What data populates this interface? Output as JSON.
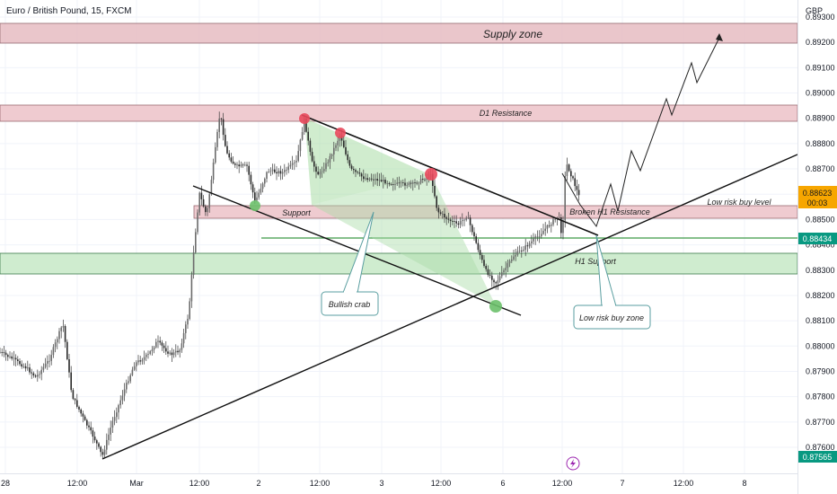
{
  "header": {
    "title": "Euro / British Pound, 15, FXCM",
    "currency": "GBP"
  },
  "chart_data": {
    "type": "candlestick",
    "instrument": "Euro / British Pound",
    "timeframe": "15",
    "broker": "FXCM",
    "y_range": [
      0.8755,
      0.8932
    ],
    "y_ticks": [
      "0.89300",
      "0.89200",
      "0.89100",
      "0.89000",
      "0.88900",
      "0.88800",
      "0.88700",
      "0.88600",
      "0.88500",
      "0.88400",
      "0.88300",
      "0.88200",
      "0.88100",
      "0.88000",
      "0.87900",
      "0.87800",
      "0.87700",
      "0.87600"
    ],
    "x_ticks": [
      "28",
      "12:00",
      "Mar",
      "12:00",
      "2",
      "12:00",
      "3",
      "12:00",
      "6",
      "12:00",
      "7",
      "12:00",
      "8"
    ],
    "price_labels": {
      "current": {
        "price": "0.88623",
        "countdown": "00:03",
        "color": "#f7a600"
      },
      "line": {
        "price": "0.88434",
        "color": "#089981"
      },
      "low": {
        "price": "0.87565",
        "color": "#089981"
      }
    },
    "zones": [
      {
        "label": "Supply zone",
        "price_top": 0.893,
        "price_bottom": 0.8922,
        "color": "#e8a6b0"
      },
      {
        "label": "D1 Resistance",
        "price_top": 0.8896,
        "price_bottom": 0.889,
        "color": "#e8a6b0"
      },
      {
        "label": "Support",
        "price_top": 0.8856,
        "price_bottom": 0.8852,
        "color": "#e8a6b0"
      },
      {
        "label": "Broken H1 Resistance",
        "price_top": 0.8856,
        "price_bottom": 0.8852,
        "color": "#e8a6b0"
      },
      {
        "label": "H1 Support",
        "price_top": 0.8838,
        "price_bottom": 0.883,
        "color": "#b8e2c0"
      }
    ],
    "annotations": {
      "low_risk_buy_level": "Low risk buy level",
      "bullish_crab": "Bullish crab",
      "low_risk_buy_zone": "Low risk buy zone"
    },
    "watermark_icon": "lightning-icon"
  }
}
